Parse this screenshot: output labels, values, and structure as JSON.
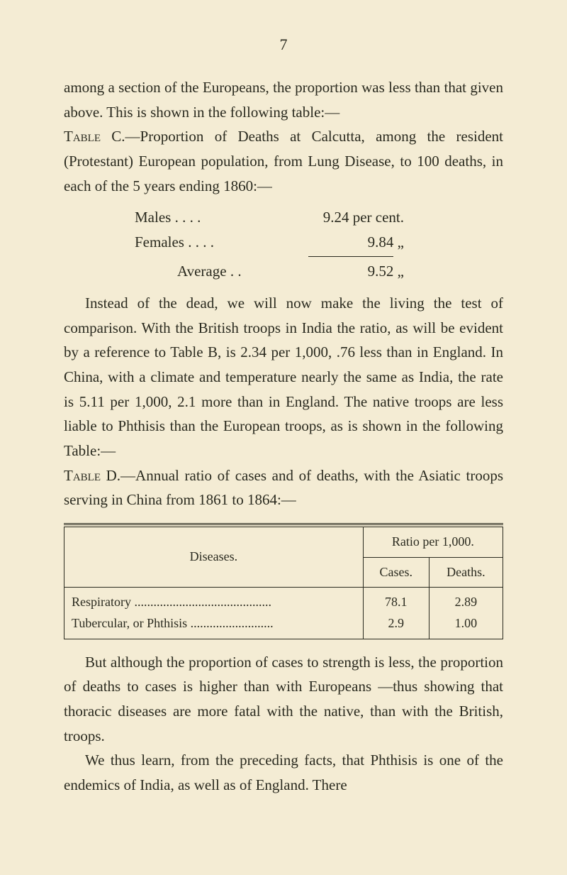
{
  "page_number": "7",
  "para1_a": "among a section of the Europeans, the proportion was less than that given above. This is shown in the following table:—",
  "para1_b_caps": "Table",
  "para1_b": " C.—Proportion of Deaths at Calcutta, among the resident (Protestant) European population, from Lung Disease, to 100 deaths, in each of the 5 years ending 1860:—",
  "stats": {
    "males_label": "Males    .    .    .    .",
    "males_value": "9.24 per cent.",
    "females_label": "Females    .    .    .    .",
    "females_value": "9.84      „",
    "average_label": "Average    .    .",
    "average_value": "9.52      „"
  },
  "para2": "Instead of the dead, we will now make the living the test of comparison. With the British troops in India the ratio, as will be evident by a reference to Table B, is 2.34 per 1,000, .76 less than in England. In China, with a climate and temperature nearly the same as India, the rate is 5.11 per 1,000, 2.1 more than in England. The native troops are less liable to Phthisis than the European troops, as is shown in the following Table:—",
  "para3_caps": "Table",
  "para3": " D.—Annual ratio of cases and of deaths, with the Asiatic troops serving in China from 1861 to 1864:—",
  "table": {
    "diseases_header": "Diseases.",
    "ratio_header": "Ratio per 1,000.",
    "cases_header": "Cases.",
    "deaths_header": "Deaths.",
    "row1_label": "Respiratory ...........................................",
    "row1_cases": "78.1",
    "row1_deaths": "2.89",
    "row2_label": "Tubercular, or Phthisis ..........................",
    "row2_cases": "2.9",
    "row2_deaths": "1.00"
  },
  "para4": "But although the proportion of cases to strength is less, the proportion of deaths to cases is higher than with Europeans —thus showing that thoracic diseases are more fatal with the native, than with the British, troops.",
  "para5": "We thus learn, from the preceding facts, that Phthisis is one of the endemics of India, as well as of England. There"
}
